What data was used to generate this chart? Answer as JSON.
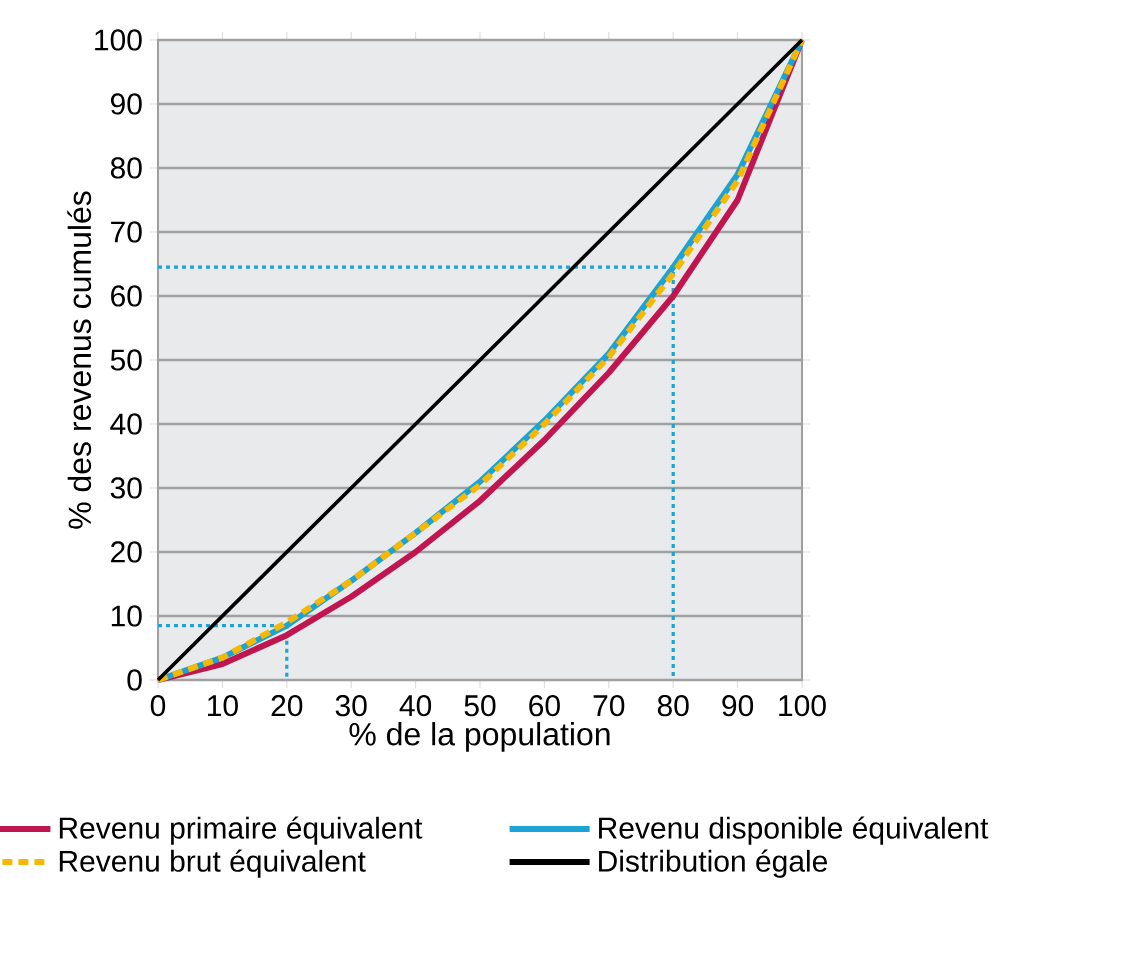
{
  "chart_data": {
    "type": "line",
    "xlabel": "% de la population",
    "ylabel": "% des revenus cumulés",
    "x": [
      0,
      10,
      20,
      30,
      40,
      50,
      60,
      70,
      80,
      90,
      100
    ],
    "xlim": [
      0,
      100
    ],
    "ylim": [
      0,
      100
    ],
    "xticks": [
      0,
      10,
      20,
      30,
      40,
      50,
      60,
      70,
      80,
      90,
      100
    ],
    "yticks": [
      0,
      10,
      20,
      30,
      40,
      50,
      60,
      70,
      80,
      90,
      100
    ],
    "grid": "y",
    "legend": "bottom",
    "line_style": "solid",
    "marker": "none",
    "series": [
      {
        "name": "Revenu primaire équivalent",
        "color": "#c0154f",
        "values": [
          0,
          2.5,
          7,
          13,
          20,
          28,
          37.5,
          48,
          60,
          75,
          100
        ]
      },
      {
        "name": "Revenu disponible équivalent",
        "color": "#1ba3d6",
        "values": [
          0,
          3.5,
          8.5,
          15.5,
          23,
          31,
          40.5,
          51,
          64.5,
          79,
          100
        ]
      },
      {
        "name": "Revenu brut équivalent",
        "color": "#f6b800",
        "line_style": "dashed",
        "values": [
          0,
          3.5,
          9,
          15.5,
          23,
          30.5,
          40,
          50.5,
          63.5,
          78,
          100
        ]
      },
      {
        "name": "Distribution égale",
        "color": "#000000",
        "x": [
          0,
          100
        ],
        "values": [
          0,
          100
        ]
      },
      {
        "color": "#1ba3d6",
        "line_style": "dotted",
        "x": [
          0,
          20,
          20
        ],
        "values": [
          8.5,
          8.5,
          0
        ]
      },
      {
        "color": "#1ba3d6",
        "line_style": "dotted",
        "x": [
          0,
          80,
          80
        ],
        "values": [
          64.5,
          64.5,
          0
        ]
      }
    ]
  }
}
